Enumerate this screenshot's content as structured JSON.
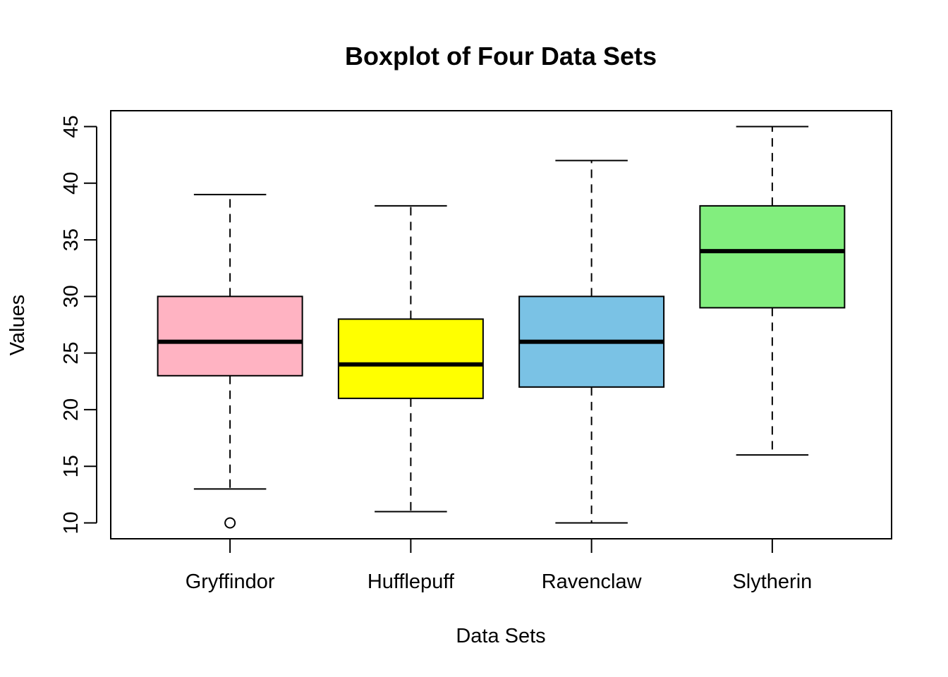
{
  "chart_data": {
    "type": "boxplot",
    "title": "Boxplot of Four Data Sets",
    "xlabel": "Data Sets",
    "ylabel": "Values",
    "categories": [
      "Gryffindor",
      "Hufflepuff",
      "Ravenclaw",
      "Slytherin"
    ],
    "ylim": [
      8.6,
      46.4
    ],
    "yticks": [
      10,
      15,
      20,
      25,
      30,
      35,
      40,
      45
    ],
    "grid": false,
    "legend": "none",
    "boxes": [
      {
        "category": "Gryffindor",
        "whisker_low": 13,
        "q1": 23,
        "median": 26,
        "q3": 30,
        "whisker_high": 39,
        "outliers": [
          10
        ],
        "color": "#FFB3C2"
      },
      {
        "category": "Hufflepuff",
        "whisker_low": 11,
        "q1": 21,
        "median": 24,
        "q3": 28,
        "whisker_high": 38,
        "outliers": [],
        "color": "#FFFF00"
      },
      {
        "category": "Ravenclaw",
        "whisker_low": 10,
        "q1": 22,
        "median": 26,
        "q3": 30,
        "whisker_high": 42,
        "outliers": [],
        "color": "#7AC2E5"
      },
      {
        "category": "Slytherin",
        "whisker_low": 16,
        "q1": 29,
        "median": 34,
        "q3": 38,
        "whisker_high": 45,
        "outliers": [],
        "color": "#82EE7E"
      }
    ]
  }
}
